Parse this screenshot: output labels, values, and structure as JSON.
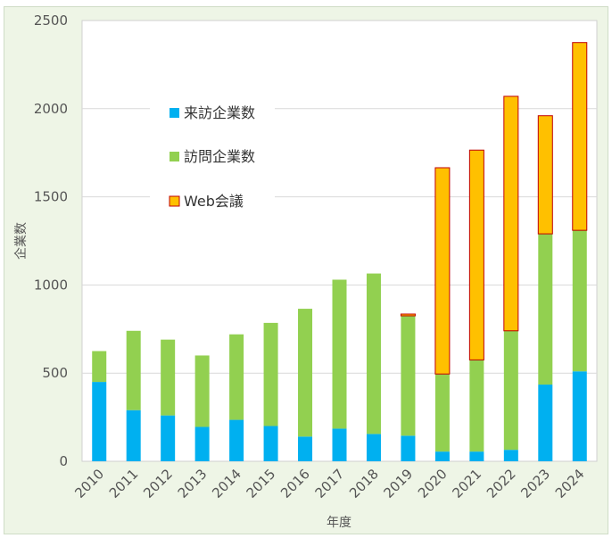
{
  "chart_data": {
    "type": "bar",
    "stacked": true,
    "categories": [
      "2010",
      "2011",
      "2012",
      "2013",
      "2014",
      "2015",
      "2016",
      "2017",
      "2018",
      "2019",
      "2020",
      "2021",
      "2022",
      "2023",
      "2024"
    ],
    "series": [
      {
        "name": "来訪企業数",
        "color": "#00b0f0",
        "values": [
          450,
          290,
          260,
          195,
          235,
          200,
          140,
          185,
          155,
          145,
          55,
          55,
          65,
          435,
          510
        ]
      },
      {
        "name": "訪問企業数",
        "color": "#92d050",
        "values": [
          175,
          450,
          430,
          405,
          485,
          585,
          725,
          845,
          910,
          680,
          440,
          520,
          675,
          855,
          800
        ]
      },
      {
        "name": "Web会議",
        "color": "#ffc000",
        "values": [
          0,
          0,
          0,
          0,
          0,
          0,
          0,
          0,
          0,
          10,
          1170,
          1190,
          1330,
          670,
          1065
        ]
      }
    ],
    "title": "",
    "xlabel": "年度",
    "ylabel": "企業数",
    "ylim": [
      0,
      2500
    ],
    "yticks": [
      0,
      500,
      1000,
      1500,
      2000,
      2500
    ],
    "grid": true,
    "legend_position": "top-left"
  }
}
